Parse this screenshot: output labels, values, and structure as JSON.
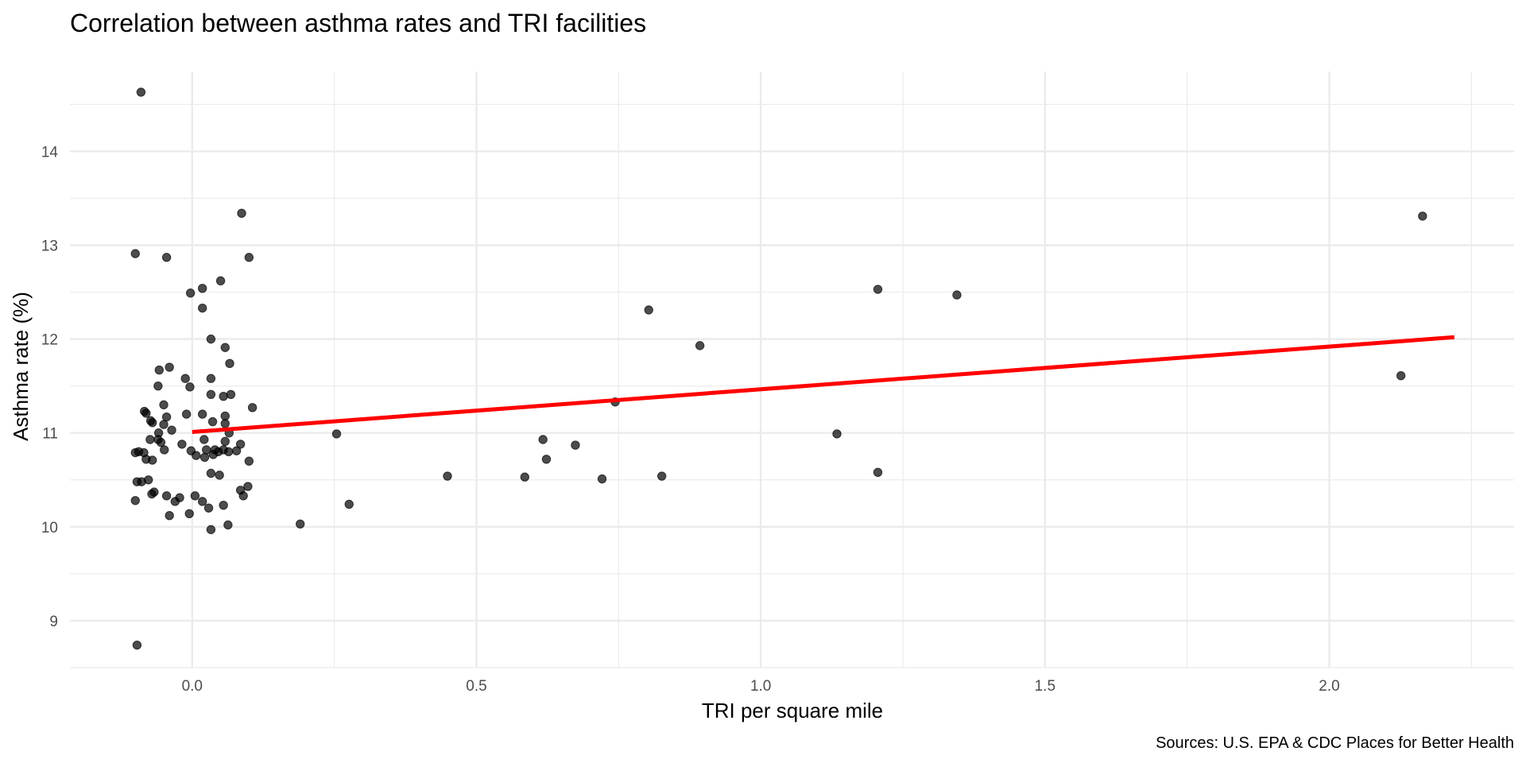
{
  "chart_data": {
    "type": "scatter",
    "title": "Correlation between asthma rates and TRI facilities",
    "xlabel": "TRI per square mile",
    "ylabel": "Asthma rate (%)",
    "caption": "Sources: U.S. EPA & CDC Places for Better Health",
    "xlim": [
      -0.215,
      2.325
    ],
    "ylim": [
      8.5,
      14.85
    ],
    "x_ticks": [
      0.0,
      0.5,
      1.0,
      1.5,
      2.0
    ],
    "x_tick_labels": [
      "0.0",
      "0.5",
      "1.0",
      "1.5",
      "2.0"
    ],
    "x_minor_ticks": [
      -0.25,
      0.25,
      0.75,
      1.25,
      1.75,
      2.25
    ],
    "y_ticks": [
      9,
      10,
      11,
      12,
      13,
      14
    ],
    "y_tick_labels": [
      "9",
      "10",
      "11",
      "12",
      "13",
      "14"
    ],
    "y_minor_ticks": [
      8.5,
      9.5,
      10.5,
      11.5,
      12.5,
      13.5,
      14.5
    ],
    "grid": true,
    "legend": "none",
    "point_color": "#000000",
    "point_alpha": 0.7,
    "trend_color": "#ff0000",
    "trendline": {
      "x": [
        0.0,
        2.22
      ],
      "y": [
        11.01,
        12.02
      ]
    },
    "points": [
      {
        "x": -0.09,
        "y": 14.63
      },
      {
        "x": -0.1,
        "y": 12.91
      },
      {
        "x": -0.045,
        "y": 12.87
      },
      {
        "x": 0.1,
        "y": 12.87
      },
      {
        "x": 0.087,
        "y": 13.34
      },
      {
        "x": 0.05,
        "y": 12.62
      },
      {
        "x": 0.018,
        "y": 12.54
      },
      {
        "x": -0.003,
        "y": 12.49
      },
      {
        "x": 0.018,
        "y": 12.33
      },
      {
        "x": 0.033,
        "y": 12.0
      },
      {
        "x": 0.058,
        "y": 11.91
      },
      {
        "x": 0.066,
        "y": 11.74
      },
      {
        "x": -0.04,
        "y": 11.7
      },
      {
        "x": -0.058,
        "y": 11.67
      },
      {
        "x": -0.012,
        "y": 11.58
      },
      {
        "x": 0.033,
        "y": 11.58
      },
      {
        "x": -0.06,
        "y": 11.5
      },
      {
        "x": -0.004,
        "y": 11.49
      },
      {
        "x": 0.033,
        "y": 11.41
      },
      {
        "x": 0.055,
        "y": 11.39
      },
      {
        "x": 0.068,
        "y": 11.41
      },
      {
        "x": -0.05,
        "y": 11.3
      },
      {
        "x": 0.106,
        "y": 11.27
      },
      {
        "x": -0.084,
        "y": 11.23
      },
      {
        "x": -0.081,
        "y": 11.21
      },
      {
        "x": -0.01,
        "y": 11.2
      },
      {
        "x": 0.018,
        "y": 11.2
      },
      {
        "x": 0.058,
        "y": 11.18
      },
      {
        "x": -0.045,
        "y": 11.17
      },
      {
        "x": -0.073,
        "y": 11.13
      },
      {
        "x": -0.07,
        "y": 11.11
      },
      {
        "x": 0.036,
        "y": 11.12
      },
      {
        "x": 0.058,
        "y": 11.1
      },
      {
        "x": -0.05,
        "y": 11.09
      },
      {
        "x": -0.036,
        "y": 11.03
      },
      {
        "x": -0.059,
        "y": 11.0
      },
      {
        "x": 0.065,
        "y": 11.0
      },
      {
        "x": -0.074,
        "y": 10.93
      },
      {
        "x": -0.06,
        "y": 10.93
      },
      {
        "x": -0.055,
        "y": 10.9
      },
      {
        "x": 0.021,
        "y": 10.93
      },
      {
        "x": 0.058,
        "y": 10.91
      },
      {
        "x": -0.018,
        "y": 10.88
      },
      {
        "x": 0.085,
        "y": 10.88
      },
      {
        "x": -0.049,
        "y": 10.82
      },
      {
        "x": -0.002,
        "y": 10.81
      },
      {
        "x": 0.025,
        "y": 10.82
      },
      {
        "x": 0.04,
        "y": 10.82
      },
      {
        "x": 0.046,
        "y": 10.8
      },
      {
        "x": 0.055,
        "y": 10.82
      },
      {
        "x": 0.064,
        "y": 10.8
      },
      {
        "x": 0.078,
        "y": 10.81
      },
      {
        "x": -0.1,
        "y": 10.79
      },
      {
        "x": -0.094,
        "y": 10.8
      },
      {
        "x": -0.085,
        "y": 10.79
      },
      {
        "x": 0.007,
        "y": 10.76
      },
      {
        "x": 0.022,
        "y": 10.74
      },
      {
        "x": 0.037,
        "y": 10.77
      },
      {
        "x": -0.081,
        "y": 10.72
      },
      {
        "x": -0.07,
        "y": 10.71
      },
      {
        "x": 0.1,
        "y": 10.7
      },
      {
        "x": 0.033,
        "y": 10.57
      },
      {
        "x": 0.048,
        "y": 10.55
      },
      {
        "x": -0.077,
        "y": 10.5
      },
      {
        "x": -0.097,
        "y": 10.48
      },
      {
        "x": -0.089,
        "y": 10.48
      },
      {
        "x": 0.098,
        "y": 10.43
      },
      {
        "x": 0.085,
        "y": 10.39
      },
      {
        "x": -0.067,
        "y": 10.37
      },
      {
        "x": -0.071,
        "y": 10.35
      },
      {
        "x": -0.045,
        "y": 10.33
      },
      {
        "x": 0.005,
        "y": 10.33
      },
      {
        "x": -0.022,
        "y": 10.31
      },
      {
        "x": 0.09,
        "y": 10.33
      },
      {
        "x": -0.1,
        "y": 10.28
      },
      {
        "x": -0.03,
        "y": 10.27
      },
      {
        "x": 0.018,
        "y": 10.27
      },
      {
        "x": 0.029,
        "y": 10.2
      },
      {
        "x": 0.055,
        "y": 10.23
      },
      {
        "x": -0.04,
        "y": 10.12
      },
      {
        "x": -0.005,
        "y": 10.14
      },
      {
        "x": 0.063,
        "y": 10.02
      },
      {
        "x": 0.033,
        "y": 9.97
      },
      {
        "x": -0.097,
        "y": 8.74
      },
      {
        "x": 0.19,
        "y": 10.03
      },
      {
        "x": 0.254,
        "y": 10.99
      },
      {
        "x": 0.276,
        "y": 10.24
      },
      {
        "x": 0.449,
        "y": 10.54
      },
      {
        "x": 0.585,
        "y": 10.53
      },
      {
        "x": 0.617,
        "y": 10.93
      },
      {
        "x": 0.623,
        "y": 10.72
      },
      {
        "x": 0.674,
        "y": 10.87
      },
      {
        "x": 0.721,
        "y": 10.51
      },
      {
        "x": 0.744,
        "y": 11.33
      },
      {
        "x": 0.803,
        "y": 12.31
      },
      {
        "x": 0.826,
        "y": 10.54
      },
      {
        "x": 0.893,
        "y": 11.93
      },
      {
        "x": 1.134,
        "y": 10.99
      },
      {
        "x": 1.206,
        "y": 12.53
      },
      {
        "x": 1.206,
        "y": 10.58
      },
      {
        "x": 1.345,
        "y": 12.47
      },
      {
        "x": 2.126,
        "y": 11.61
      },
      {
        "x": 2.164,
        "y": 13.31
      }
    ]
  }
}
